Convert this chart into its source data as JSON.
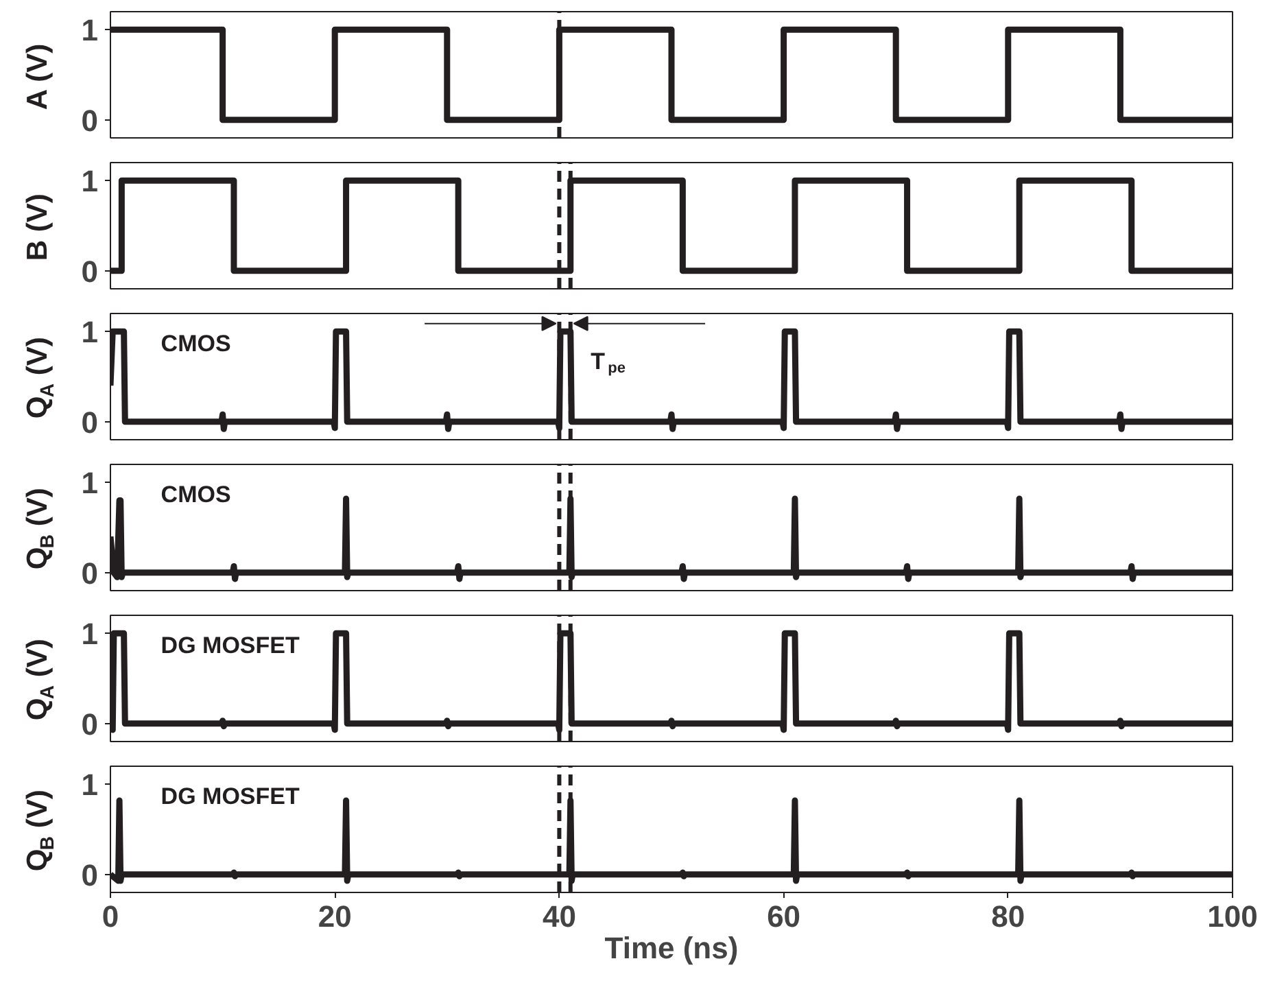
{
  "chart_data": [
    {
      "type": "line",
      "ylabel": "A (V)",
      "x": [
        0,
        10,
        10,
        20,
        20,
        30,
        30,
        40,
        40,
        50,
        50,
        60,
        60,
        70,
        70,
        80,
        80,
        90,
        90,
        100
      ],
      "series": [
        {
          "color": "#231f20",
          "values": [
            1,
            1,
            0,
            0,
            1,
            1,
            0,
            0,
            1,
            1,
            0,
            0,
            1,
            1,
            0,
            0,
            1,
            1,
            0,
            0
          ]
        }
      ],
      "xlim": [
        0,
        100
      ],
      "xticks": [
        0,
        20,
        40,
        60,
        80,
        100
      ],
      "ylim": [
        -0.2,
        1.2
      ],
      "yticks": [
        0,
        1
      ],
      "tick_labels": "y",
      "ref_lines": [
        {
          "axis": "x",
          "value": 40,
          "line_style": "dashed",
          "color": "#231f20"
        }
      ]
    },
    {
      "type": "line",
      "ylabel": "B (V)",
      "x": [
        0,
        1,
        1,
        11,
        11,
        21,
        21,
        31,
        31,
        41,
        41,
        51,
        51,
        61,
        61,
        71,
        71,
        81,
        81,
        91,
        91,
        100
      ],
      "series": [
        {
          "color": "#231f20",
          "values": [
            0,
            0,
            1,
            1,
            0,
            0,
            1,
            1,
            0,
            0,
            1,
            1,
            0,
            0,
            1,
            1,
            0,
            0,
            1,
            1,
            0,
            0
          ]
        }
      ],
      "xlim": [
        0,
        100
      ],
      "xticks": [
        0,
        20,
        40,
        60,
        80,
        100
      ],
      "ylim": [
        -0.2,
        1.2
      ],
      "yticks": [
        0,
        1
      ],
      "tick_labels": "y",
      "ref_lines": [
        {
          "axis": "x",
          "value": 40,
          "line_style": "dashed",
          "color": "#231f20"
        },
        {
          "axis": "x",
          "value": 41,
          "line_style": "dashed",
          "color": "#231f20"
        }
      ]
    },
    {
      "type": "line",
      "ylabel": "Q$_{A}$ (V)",
      "annotations": [
        "CMOS",
        "T$_{pe}$"
      ],
      "x": [
        0,
        0.2,
        1.2,
        1.3,
        9.9,
        10,
        10.1,
        10.2,
        19.9,
        20,
        20.1,
        21,
        21.1,
        29.9,
        30,
        30.1,
        30.2,
        39.9,
        40,
        40.1,
        41,
        41.1,
        49.9,
        50,
        50.1,
        50.2,
        59.9,
        60,
        60.1,
        61,
        61.1,
        69.9,
        70,
        70.1,
        70.2,
        79.9,
        80,
        80.1,
        81,
        81.1,
        89.9,
        90,
        90.1,
        90.2,
        100
      ],
      "series": [
        {
          "color": "#231f20",
          "values": [
            0.4,
            1,
            1,
            0,
            0,
            0.08,
            -0.08,
            0,
            0,
            -0.07,
            1,
            1,
            0,
            0,
            0.08,
            -0.08,
            0,
            0,
            -0.07,
            1,
            1,
            0,
            0,
            0.08,
            -0.08,
            0,
            0,
            -0.07,
            1,
            1,
            0,
            0,
            0.08,
            -0.08,
            0,
            0,
            -0.07,
            1,
            1,
            0,
            0,
            0.08,
            -0.08,
            0,
            0
          ]
        }
      ],
      "xlim": [
        0,
        100
      ],
      "xticks": [
        0,
        20,
        40,
        60,
        80,
        100
      ],
      "ylim": [
        -0.2,
        1.2
      ],
      "yticks": [
        0,
        1
      ],
      "tick_labels": "y",
      "ref_lines": [
        {
          "axis": "x",
          "value": 40,
          "line_style": "dashed",
          "color": "#231f20"
        },
        {
          "axis": "x",
          "value": 41,
          "line_style": "dashed",
          "color": "#231f20"
        }
      ]
    },
    {
      "type": "line",
      "ylabel": "Q$_{B}$ (V)",
      "annotations": [
        "CMOS"
      ],
      "x": [
        0,
        0.3,
        0.6,
        0.8,
        0.9,
        1.0,
        1.1,
        10.9,
        11,
        11.1,
        11.2,
        20.9,
        21,
        21.1,
        21.2,
        30.9,
        31,
        31.1,
        31.2,
        40.9,
        41,
        41.1,
        41.2,
        50.9,
        51,
        51.1,
        51.2,
        60.9,
        61,
        61.1,
        61.2,
        70.9,
        71,
        71.1,
        71.2,
        80.9,
        81,
        81.1,
        81.2,
        90.9,
        91,
        91.1,
        91.2,
        100
      ],
      "series": [
        {
          "color": "#231f20",
          "values": [
            0.4,
            0,
            -0.05,
            0.8,
            0.8,
            -0.05,
            0,
            0,
            0.07,
            -0.07,
            0,
            0,
            0.82,
            -0.05,
            0,
            0,
            0.07,
            -0.07,
            0,
            0,
            0.82,
            -0.05,
            0,
            0,
            0.07,
            -0.07,
            0,
            0,
            0.82,
            -0.05,
            0,
            0,
            0.07,
            -0.07,
            0,
            0,
            0.82,
            -0.05,
            0,
            0,
            0.07,
            -0.07,
            0,
            0
          ]
        }
      ],
      "xlim": [
        0,
        100
      ],
      "xticks": [
        0,
        20,
        40,
        60,
        80,
        100
      ],
      "ylim": [
        -0.2,
        1.2
      ],
      "yticks": [
        0,
        1
      ],
      "tick_labels": "y",
      "ref_lines": [
        {
          "axis": "x",
          "value": 40,
          "line_style": "dashed",
          "color": "#231f20"
        },
        {
          "axis": "x",
          "value": 41,
          "line_style": "dashed",
          "color": "#231f20"
        }
      ]
    },
    {
      "type": "line",
      "ylabel": "Q$_{A}$ (V)",
      "annotations": [
        "DG MOSFET"
      ],
      "x": [
        0,
        0.2,
        0.3,
        1.2,
        1.3,
        9.9,
        10,
        10.1,
        10.2,
        19.9,
        20,
        20.1,
        21,
        21.1,
        29.9,
        30,
        30.1,
        30.2,
        39.9,
        40,
        40.1,
        41,
        41.1,
        49.9,
        50,
        50.1,
        50.2,
        59.9,
        60,
        60.1,
        61,
        61.1,
        69.9,
        70,
        70.1,
        70.2,
        79.9,
        80,
        80.1,
        81,
        81.1,
        89.9,
        90,
        90.1,
        90.2,
        100
      ],
      "series": [
        {
          "color": "#231f20",
          "values": [
            0,
            -0.07,
            1,
            1,
            0,
            0,
            0.03,
            -0.03,
            0,
            0,
            -0.07,
            1,
            1,
            0,
            0,
            0.03,
            -0.03,
            0,
            0,
            -0.07,
            1,
            1,
            0,
            0,
            0.03,
            -0.03,
            0,
            0,
            -0.07,
            1,
            1,
            0,
            0,
            0.03,
            -0.03,
            0,
            0,
            -0.07,
            1,
            1,
            0,
            0,
            0.03,
            -0.03,
            0,
            0
          ]
        }
      ],
      "xlim": [
        0,
        100
      ],
      "xticks": [
        0,
        20,
        40,
        60,
        80,
        100
      ],
      "ylim": [
        -0.2,
        1.2
      ],
      "yticks": [
        0,
        1
      ],
      "tick_labels": "y",
      "ref_lines": [
        {
          "axis": "x",
          "value": 40,
          "line_style": "dashed",
          "color": "#231f20"
        },
        {
          "axis": "x",
          "value": 41,
          "line_style": "dashed",
          "color": "#231f20"
        }
      ]
    },
    {
      "type": "line",
      "ylabel": "Q$_{B}$ (V)",
      "xlabel": "Time (ns)",
      "annotations": [
        "DG MOSFET"
      ],
      "x": [
        0,
        0.7,
        0.8,
        0.9,
        1.0,
        10.9,
        11,
        11.1,
        11.2,
        20.9,
        21,
        21.1,
        21.2,
        30.9,
        31,
        31.1,
        31.2,
        40.9,
        41,
        41.1,
        41.2,
        50.9,
        51,
        51.1,
        51.2,
        60.9,
        61,
        61.1,
        61.2,
        70.9,
        71,
        71.1,
        71.2,
        80.9,
        81,
        81.1,
        81.2,
        90.9,
        91,
        91.1,
        91.2,
        100
      ],
      "series": [
        {
          "color": "#231f20",
          "values": [
            0,
            -0.07,
            0.82,
            -0.07,
            0,
            0,
            0.02,
            -0.02,
            0,
            0,
            0.82,
            -0.07,
            0,
            0,
            0.02,
            -0.02,
            0,
            0,
            0.82,
            -0.07,
            0,
            0,
            0.02,
            -0.02,
            0,
            0,
            0.82,
            -0.07,
            0,
            0,
            0.02,
            -0.02,
            0,
            0,
            0.82,
            -0.07,
            0,
            0,
            0.02,
            -0.02,
            0,
            0
          ]
        }
      ],
      "xlim": [
        0,
        100
      ],
      "xticks": [
        0,
        20,
        40,
        60,
        80,
        100
      ],
      "ylim": [
        -0.2,
        1.2
      ],
      "yticks": [
        0,
        1
      ],
      "ref_lines": [
        {
          "axis": "x",
          "value": 40,
          "line_style": "dashed",
          "color": "#231f20"
        },
        {
          "axis": "x",
          "value": 41,
          "line_style": "dashed",
          "color": "#231f20"
        }
      ]
    }
  ]
}
